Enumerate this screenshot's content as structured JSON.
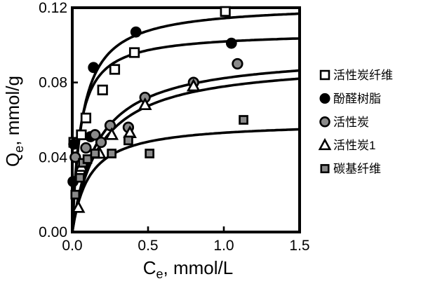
{
  "figure": {
    "background": "#ffffff",
    "ink_color": "#000000",
    "gray_fill": "#8a8a8a",
    "marker_face": "#ffffff"
  },
  "axes": {
    "x": {
      "label_main": "C",
      "label_sub": "e",
      "label_rest": ", mmol/L",
      "ticks": [
        "0.0",
        "0.5",
        "1.0",
        "1.5"
      ]
    },
    "y": {
      "label_main": "Q",
      "label_sub": "e",
      "label_rest": ", mmol/g",
      "ticks": [
        "0.00",
        "0.04",
        "0.08",
        "0.12"
      ]
    }
  },
  "chart_data": {
    "type": "scatter",
    "title": "",
    "xlabel": "Ce, mmol/L",
    "ylabel": "Qe, mmol/g",
    "xlim": [
      0,
      1.5
    ],
    "ylim": [
      0,
      0.12
    ],
    "x_ticks": [
      0,
      0.5,
      1.0,
      1.5
    ],
    "y_ticks": [
      0,
      0.04,
      0.08,
      0.12
    ],
    "grid": false,
    "legend_position": "right",
    "series": [
      {
        "name": "活性炭纤维",
        "marker": "open-square",
        "points": [
          [
            0.01,
            0.048
          ],
          [
            0.06,
            0.052
          ],
          [
            0.09,
            0.061
          ],
          [
            0.2,
            0.076
          ],
          [
            0.28,
            0.087
          ],
          [
            0.41,
            0.096
          ],
          [
            1.01,
            0.118
          ]
        ]
      },
      {
        "name": "酚醛树脂",
        "marker": "filled-circle",
        "points": [
          [
            0.005,
            0.027
          ],
          [
            0.01,
            0.047
          ],
          [
            0.12,
            0.051
          ],
          [
            0.14,
            0.088
          ],
          [
            0.42,
            0.107
          ],
          [
            1.05,
            0.101
          ]
        ]
      },
      {
        "name": "活性炭",
        "marker": "gray-circle",
        "points": [
          [
            0.02,
            0.04
          ],
          [
            0.09,
            0.045
          ],
          [
            0.15,
            0.052
          ],
          [
            0.19,
            0.048
          ],
          [
            0.25,
            0.057
          ],
          [
            0.37,
            0.056
          ],
          [
            0.48,
            0.072
          ],
          [
            0.8,
            0.08
          ],
          [
            1.09,
            0.09
          ]
        ]
      },
      {
        "name": "活性炭1",
        "marker": "open-triangle",
        "points": [
          [
            0.04,
            0.013
          ],
          [
            0.06,
            0.035
          ],
          [
            0.18,
            0.042
          ],
          [
            0.26,
            0.052
          ],
          [
            0.38,
            0.053
          ],
          [
            0.48,
            0.068
          ],
          [
            0.8,
            0.078
          ]
        ]
      },
      {
        "name": "碳基纤维",
        "marker": "gray-square",
        "points": [
          [
            0.02,
            0.02
          ],
          [
            0.05,
            0.029
          ],
          [
            0.07,
            0.037
          ],
          [
            0.1,
            0.039
          ],
          [
            0.15,
            0.042
          ],
          [
            0.26,
            0.042
          ],
          [
            0.37,
            0.049
          ],
          [
            0.51,
            0.042
          ],
          [
            1.13,
            0.06
          ]
        ]
      }
    ],
    "fit_curves": [
      {
        "series": "酚醛树脂",
        "model": "langmuir",
        "qm": 0.122,
        "k": 15,
        "q_at_xmax": 0.117
      },
      {
        "series": "活性炭纤维",
        "model": "langmuir",
        "qm": 0.107,
        "k": 20,
        "q_at_xmax": 0.104
      },
      {
        "series": "活性炭",
        "model": "langmuir",
        "qm": 0.096,
        "k": 6,
        "q_at_xmax": 0.086
      },
      {
        "series": "活性炭1",
        "model": "langmuir",
        "qm": 0.092,
        "k": 5.5,
        "q_at_xmax": 0.082
      },
      {
        "series": "碳基纤维",
        "model": "langmuir",
        "qm": 0.059,
        "k": 9,
        "q_at_xmax": 0.055
      }
    ]
  }
}
